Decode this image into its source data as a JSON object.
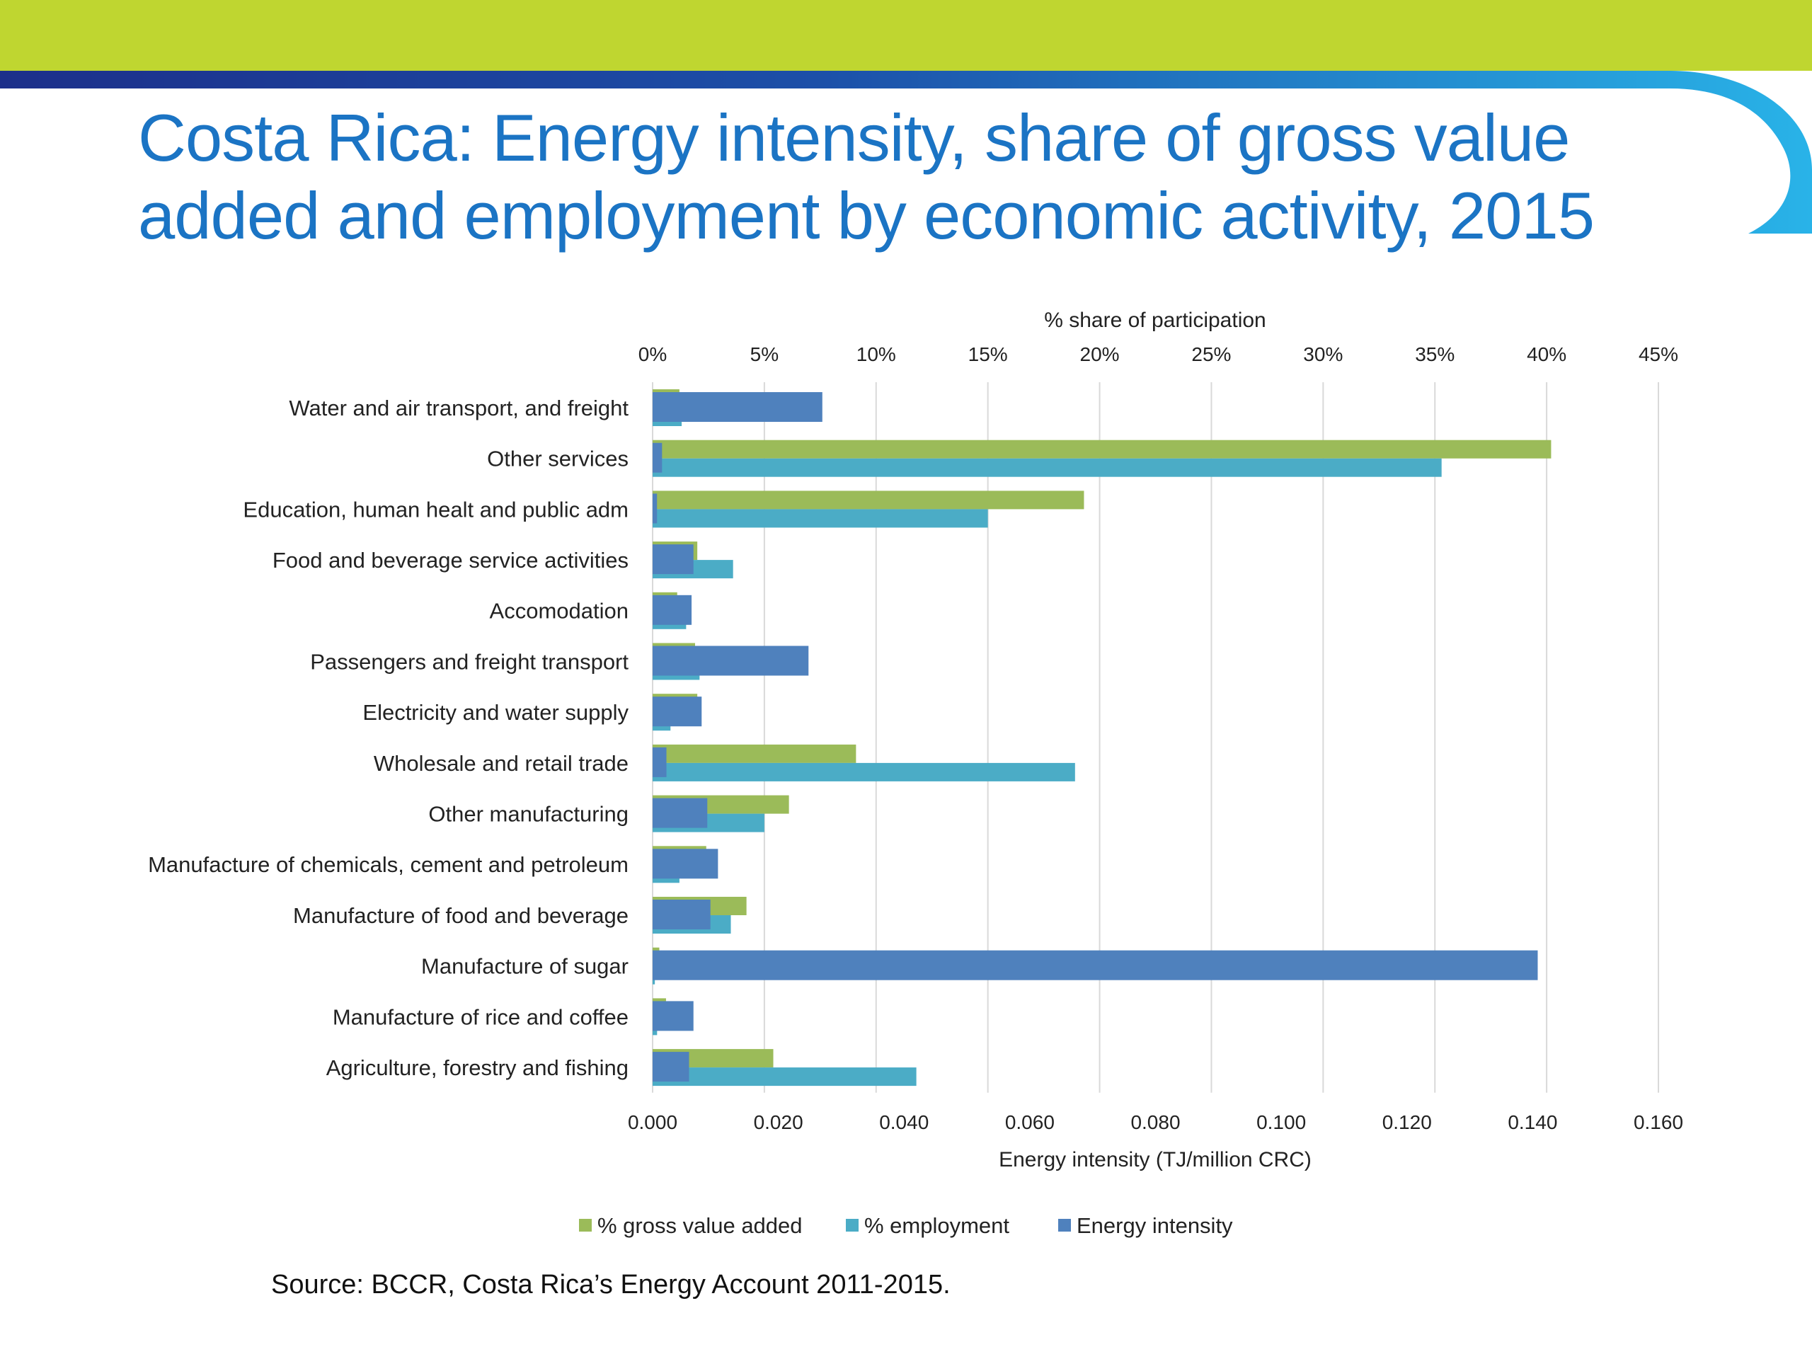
{
  "slide": {
    "title": "Costa Rica: Energy intensity, share of gross value added and employment by economic activity, 2015",
    "source": "Source: BCCR, Costa Rica’s Energy Account 2011-2015."
  },
  "colors": {
    "header_green": "#bfd630",
    "header_navy": "#1c2f8a",
    "header_cyan": "#29b3e8",
    "title_blue": "#1b74c4"
  },
  "chart_data": {
    "type": "bar",
    "orientation": "horizontal",
    "categories": [
      "Water and air transport, and freight",
      "Other services",
      "Education, human healt and public adm",
      "Food and beverage service activities",
      "Accomodation",
      "Passengers and freight transport",
      "Electricity and water supply",
      "Wholesale and retail trade",
      "Other manufacturing",
      "Manufacture of chemicals, cement and petroleum",
      "Manufacture of food and beverage",
      "Manufacture of sugar",
      "Manufacture of rice and coffee",
      "Agriculture, forestry and fishing"
    ],
    "series": [
      {
        "name": "% gross value added",
        "axis": "top",
        "unit": "%",
        "color": "#9bbb59",
        "values": [
          1.2,
          40.2,
          19.3,
          2.0,
          1.1,
          1.9,
          2.0,
          9.1,
          6.1,
          2.4,
          4.2,
          0.3,
          0.6,
          5.4
        ]
      },
      {
        "name": "% employment",
        "axis": "top",
        "unit": "%",
        "color": "#4bacc6",
        "values": [
          1.3,
          35.3,
          15.0,
          3.6,
          1.5,
          2.1,
          0.8,
          18.9,
          5.0,
          1.2,
          3.5,
          0.1,
          0.2,
          11.8
        ]
      },
      {
        "name": "Energy intensity",
        "axis": "bottom",
        "unit": "TJ/million CRC",
        "color": "#4f81bd",
        "values": [
          0.027,
          0.0015,
          0.0007,
          0.0065,
          0.0062,
          0.0248,
          0.0078,
          0.0022,
          0.0087,
          0.0104,
          0.0092,
          0.1408,
          0.0065,
          0.0058
        ]
      }
    ],
    "x_top": {
      "label": "% share of participation",
      "lim": [
        0,
        45
      ],
      "ticks": [
        "0%",
        "5%",
        "10%",
        "15%",
        "20%",
        "25%",
        "30%",
        "35%",
        "40%",
        "45%"
      ]
    },
    "x_bottom": {
      "label": "Energy intensity (TJ/million CRC)",
      "lim": [
        0,
        0.16
      ],
      "ticks": [
        "0.000",
        "0.020",
        "0.040",
        "0.060",
        "0.080",
        "0.100",
        "0.120",
        "0.140",
        "0.160"
      ]
    },
    "grid": true,
    "legend_position": "bottom"
  }
}
